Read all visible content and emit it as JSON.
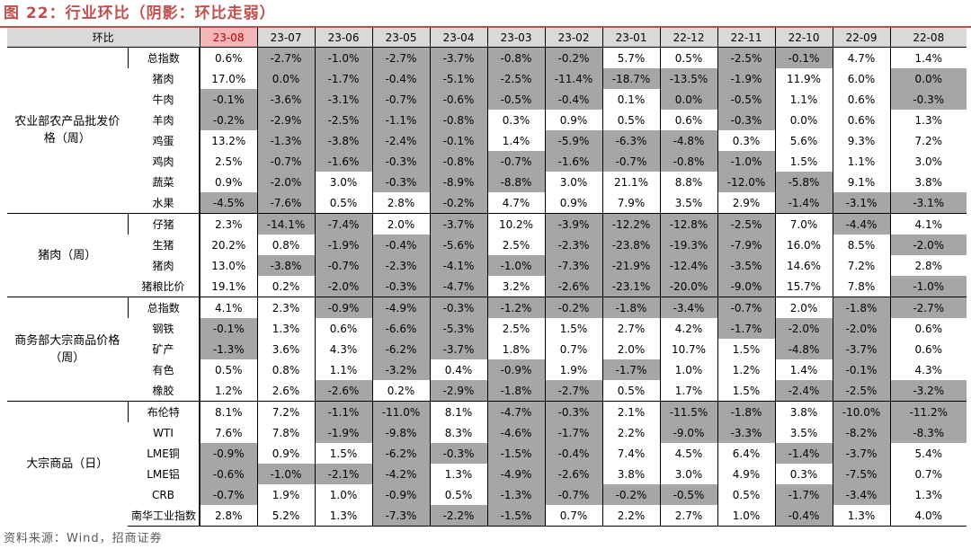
{
  "title": "图 22：行业环比（阴影：环比走弱）",
  "source": "资料来源：Wind，招商证券",
  "corner_label": "环比",
  "highlight_period": "23-08",
  "periods": [
    "23-08",
    "23-07",
    "23-06",
    "23-05",
    "23-04",
    "23-03",
    "23-02",
    "23-01",
    "22-12",
    "22-11",
    "22-10",
    "22-09",
    "22-08"
  ],
  "groups": [
    {
      "name": "农业部农产品批发价格（周）",
      "rows": [
        {
          "item": "总指数",
          "values": [
            "0.6%",
            "-2.7%",
            "-1.0%",
            "-2.7%",
            "-3.7%",
            "-0.8%",
            "-0.2%",
            "5.7%",
            "0.5%",
            "-2.5%",
            "-0.1%",
            "4.7%",
            "1.4%"
          ],
          "shade": [
            0,
            1,
            1,
            1,
            1,
            1,
            1,
            0,
            0,
            1,
            1,
            0,
            0
          ]
        },
        {
          "item": "猪肉",
          "values": [
            "17.0%",
            "0.0%",
            "-1.7%",
            "-0.4%",
            "-5.1%",
            "-2.5%",
            "-11.4%",
            "-18.7%",
            "-13.5%",
            "-1.9%",
            "11.9%",
            "6.0%",
            "0.0%"
          ],
          "shade": [
            0,
            1,
            1,
            1,
            1,
            1,
            1,
            1,
            1,
            1,
            0,
            0,
            1
          ]
        },
        {
          "item": "牛肉",
          "values": [
            "-0.1%",
            "-3.6%",
            "-3.1%",
            "-0.7%",
            "-0.6%",
            "-0.5%",
            "-0.4%",
            "0.1%",
            "0.0%",
            "-0.5%",
            "1.1%",
            "0.6%",
            "-0.3%"
          ],
          "shade": [
            1,
            1,
            1,
            1,
            1,
            1,
            1,
            0,
            1,
            1,
            0,
            0,
            1
          ]
        },
        {
          "item": "羊肉",
          "values": [
            "-0.2%",
            "-2.9%",
            "-2.5%",
            "-1.1%",
            "-0.8%",
            "0.3%",
            "0.9%",
            "0.5%",
            "0.6%",
            "-0.3%",
            "0.0%",
            "0.6%",
            "1.3%"
          ],
          "shade": [
            1,
            1,
            1,
            1,
            1,
            0,
            0,
            0,
            0,
            1,
            0,
            0,
            0
          ]
        },
        {
          "item": "鸡蛋",
          "values": [
            "13.2%",
            "-1.3%",
            "-3.8%",
            "-2.4%",
            "-0.1%",
            "1.4%",
            "-5.9%",
            "-6.3%",
            "-4.8%",
            "0.3%",
            "5.6%",
            "9.3%",
            "7.2%"
          ],
          "shade": [
            0,
            1,
            1,
            1,
            1,
            0,
            1,
            1,
            1,
            0,
            0,
            0,
            0
          ]
        },
        {
          "item": "鸡肉",
          "values": [
            "2.5%",
            "-0.7%",
            "-1.6%",
            "-0.3%",
            "-0.8%",
            "-0.7%",
            "-1.6%",
            "-0.7%",
            "-0.8%",
            "-1.0%",
            "1.5%",
            "1.1%",
            "3.0%"
          ],
          "shade": [
            0,
            1,
            1,
            1,
            1,
            1,
            1,
            1,
            1,
            1,
            0,
            0,
            0
          ]
        },
        {
          "item": "蔬菜",
          "values": [
            "0.9%",
            "-2.0%",
            "3.0%",
            "-0.3%",
            "-8.9%",
            "-8.8%",
            "3.0%",
            "21.1%",
            "8.8%",
            "-12.0%",
            "-5.8%",
            "9.1%",
            "3.8%"
          ],
          "shade": [
            0,
            1,
            0,
            1,
            1,
            1,
            0,
            0,
            0,
            1,
            1,
            0,
            0
          ]
        },
        {
          "item": "水果",
          "values": [
            "-4.5%",
            "-7.6%",
            "0.5%",
            "2.8%",
            "-0.2%",
            "4.7%",
            "0.9%",
            "7.9%",
            "3.5%",
            "2.9%",
            "-1.4%",
            "-3.1%",
            "-3.1%"
          ],
          "shade": [
            1,
            1,
            0,
            0,
            1,
            0,
            0,
            0,
            0,
            0,
            1,
            1,
            1
          ]
        }
      ]
    },
    {
      "name": "猪肉（周）",
      "rows": [
        {
          "item": "仔猪",
          "values": [
            "2.3%",
            "-14.1%",
            "-7.4%",
            "2.0%",
            "-3.7%",
            "10.2%",
            "-3.9%",
            "-12.2%",
            "-12.8%",
            "-2.5%",
            "7.0%",
            "-4.4%",
            "4.1%"
          ],
          "shade": [
            0,
            1,
            1,
            0,
            1,
            0,
            1,
            1,
            1,
            1,
            0,
            1,
            0
          ]
        },
        {
          "item": "生猪",
          "values": [
            "20.2%",
            "0.8%",
            "-1.9%",
            "-0.4%",
            "-5.6%",
            "2.5%",
            "-2.3%",
            "-23.8%",
            "-19.3%",
            "-7.9%",
            "16.0%",
            "8.5%",
            "-2.0%"
          ],
          "shade": [
            0,
            0,
            1,
            1,
            1,
            0,
            1,
            1,
            1,
            1,
            0,
            0,
            1
          ]
        },
        {
          "item": "猪肉",
          "values": [
            "13.0%",
            "-3.8%",
            "-0.7%",
            "-2.3%",
            "-4.1%",
            "-1.0%",
            "-7.3%",
            "-21.9%",
            "-12.4%",
            "-3.5%",
            "14.6%",
            "7.2%",
            "2.8%"
          ],
          "shade": [
            0,
            1,
            1,
            1,
            1,
            1,
            1,
            1,
            1,
            1,
            0,
            0,
            0
          ]
        },
        {
          "item": "猪粮比价",
          "values": [
            "19.1%",
            "0.2%",
            "-2.0%",
            "-0.3%",
            "-4.7%",
            "3.2%",
            "-2.6%",
            "-23.1%",
            "-20.0%",
            "-9.0%",
            "15.7%",
            "7.8%",
            "-1.0%"
          ],
          "shade": [
            0,
            0,
            1,
            1,
            1,
            0,
            1,
            1,
            1,
            1,
            0,
            0,
            1
          ]
        }
      ]
    },
    {
      "name": "商务部大宗商品价格（周）",
      "rows": [
        {
          "item": "总指数",
          "values": [
            "4.1%",
            "2.3%",
            "-0.9%",
            "-4.9%",
            "-0.3%",
            "-1.2%",
            "-0.2%",
            "-1.8%",
            "-3.4%",
            "-0.7%",
            "2.0%",
            "-1.8%",
            "-2.7%"
          ],
          "shade": [
            0,
            0,
            1,
            1,
            1,
            1,
            1,
            1,
            1,
            1,
            0,
            1,
            1
          ]
        },
        {
          "item": "钢铁",
          "values": [
            "-0.1%",
            "1.3%",
            "0.6%",
            "-6.6%",
            "-5.3%",
            "2.5%",
            "1.5%",
            "2.7%",
            "4.2%",
            "-1.7%",
            "-2.0%",
            "-2.0%",
            "0.6%"
          ],
          "shade": [
            1,
            0,
            0,
            1,
            1,
            0,
            0,
            0,
            0,
            1,
            1,
            1,
            0
          ]
        },
        {
          "item": "矿产",
          "values": [
            "-1.3%",
            "3.6%",
            "4.3%",
            "-6.2%",
            "-3.7%",
            "1.8%",
            "0.7%",
            "2.0%",
            "10.7%",
            "1.5%",
            "-4.8%",
            "-3.7%",
            "0.6%"
          ],
          "shade": [
            1,
            0,
            0,
            1,
            1,
            0,
            0,
            0,
            0,
            0,
            1,
            1,
            0
          ]
        },
        {
          "item": "有色",
          "values": [
            "0.5%",
            "0.8%",
            "1.1%",
            "-3.2%",
            "0.4%",
            "-0.9%",
            "1.9%",
            "-1.7%",
            "1.0%",
            "1.2%",
            "1.4%",
            "-0.1%",
            "4.3%"
          ],
          "shade": [
            0,
            0,
            0,
            1,
            0,
            1,
            0,
            1,
            0,
            0,
            0,
            1,
            0
          ]
        },
        {
          "item": "橡胶",
          "values": [
            "1.2%",
            "2.6%",
            "-2.6%",
            "0.2%",
            "-2.9%",
            "-1.8%",
            "-2.7%",
            "0.5%",
            "1.7%",
            "1.5%",
            "-2.4%",
            "-2.5%",
            "-3.2%"
          ],
          "shade": [
            0,
            0,
            1,
            0,
            1,
            1,
            1,
            0,
            0,
            0,
            1,
            1,
            1
          ]
        }
      ]
    },
    {
      "name": "大宗商品（日）",
      "rows": [
        {
          "item": "布伦特",
          "values": [
            "8.1%",
            "7.2%",
            "-1.1%",
            "-11.0%",
            "8.1%",
            "-4.7%",
            "-0.3%",
            "2.1%",
            "-11.5%",
            "-1.8%",
            "3.8%",
            "-10.0%",
            "-11.2%"
          ],
          "shade": [
            0,
            0,
            1,
            1,
            0,
            1,
            1,
            0,
            1,
            1,
            0,
            1,
            1
          ]
        },
        {
          "item": "WTI",
          "values": [
            "7.6%",
            "7.8%",
            "-1.9%",
            "-9.8%",
            "8.3%",
            "-4.6%",
            "-1.7%",
            "2.2%",
            "-9.0%",
            "-3.3%",
            "3.5%",
            "-8.2%",
            "-8.3%"
          ],
          "shade": [
            0,
            0,
            1,
            1,
            0,
            1,
            1,
            0,
            1,
            1,
            0,
            1,
            1
          ]
        },
        {
          "item": "LME铜",
          "values": [
            "-0.9%",
            "0.9%",
            "1.5%",
            "-6.2%",
            "-0.3%",
            "-1.5%",
            "-0.4%",
            "7.4%",
            "4.5%",
            "6.4%",
            "-1.4%",
            "-3.7%",
            "5.4%"
          ],
          "shade": [
            1,
            0,
            0,
            1,
            1,
            1,
            1,
            0,
            0,
            0,
            1,
            1,
            0
          ]
        },
        {
          "item": "LME铝",
          "values": [
            "-0.6%",
            "-1.0%",
            "-2.1%",
            "-4.2%",
            "1.3%",
            "-4.9%",
            "-2.6%",
            "3.8%",
            "3.0%",
            "4.9%",
            "0.3%",
            "-7.5%",
            "0.7%"
          ],
          "shade": [
            1,
            1,
            1,
            1,
            0,
            1,
            1,
            0,
            0,
            0,
            0,
            1,
            0
          ]
        },
        {
          "item": "CRB",
          "values": [
            "-0.7%",
            "1.9%",
            "1.0%",
            "-0.9%",
            "0.5%",
            "-1.3%",
            "-0.7%",
            "-0.2%",
            "-0.5%",
            "0.5%",
            "-1.7%",
            "-3.4%",
            "1.3%"
          ],
          "shade": [
            1,
            0,
            0,
            1,
            0,
            1,
            1,
            1,
            1,
            0,
            1,
            1,
            0
          ]
        },
        {
          "item": "南华工业指数",
          "values": [
            "2.8%",
            "5.2%",
            "1.3%",
            "-7.3%",
            "-2.2%",
            "-1.5%",
            "0.7%",
            "2.2%",
            "2.7%",
            "1.0%",
            "-0.4%",
            "1.3%",
            "4.0%"
          ],
          "shade": [
            0,
            0,
            0,
            1,
            1,
            1,
            0,
            0,
            0,
            0,
            1,
            0,
            0
          ]
        }
      ]
    }
  ]
}
